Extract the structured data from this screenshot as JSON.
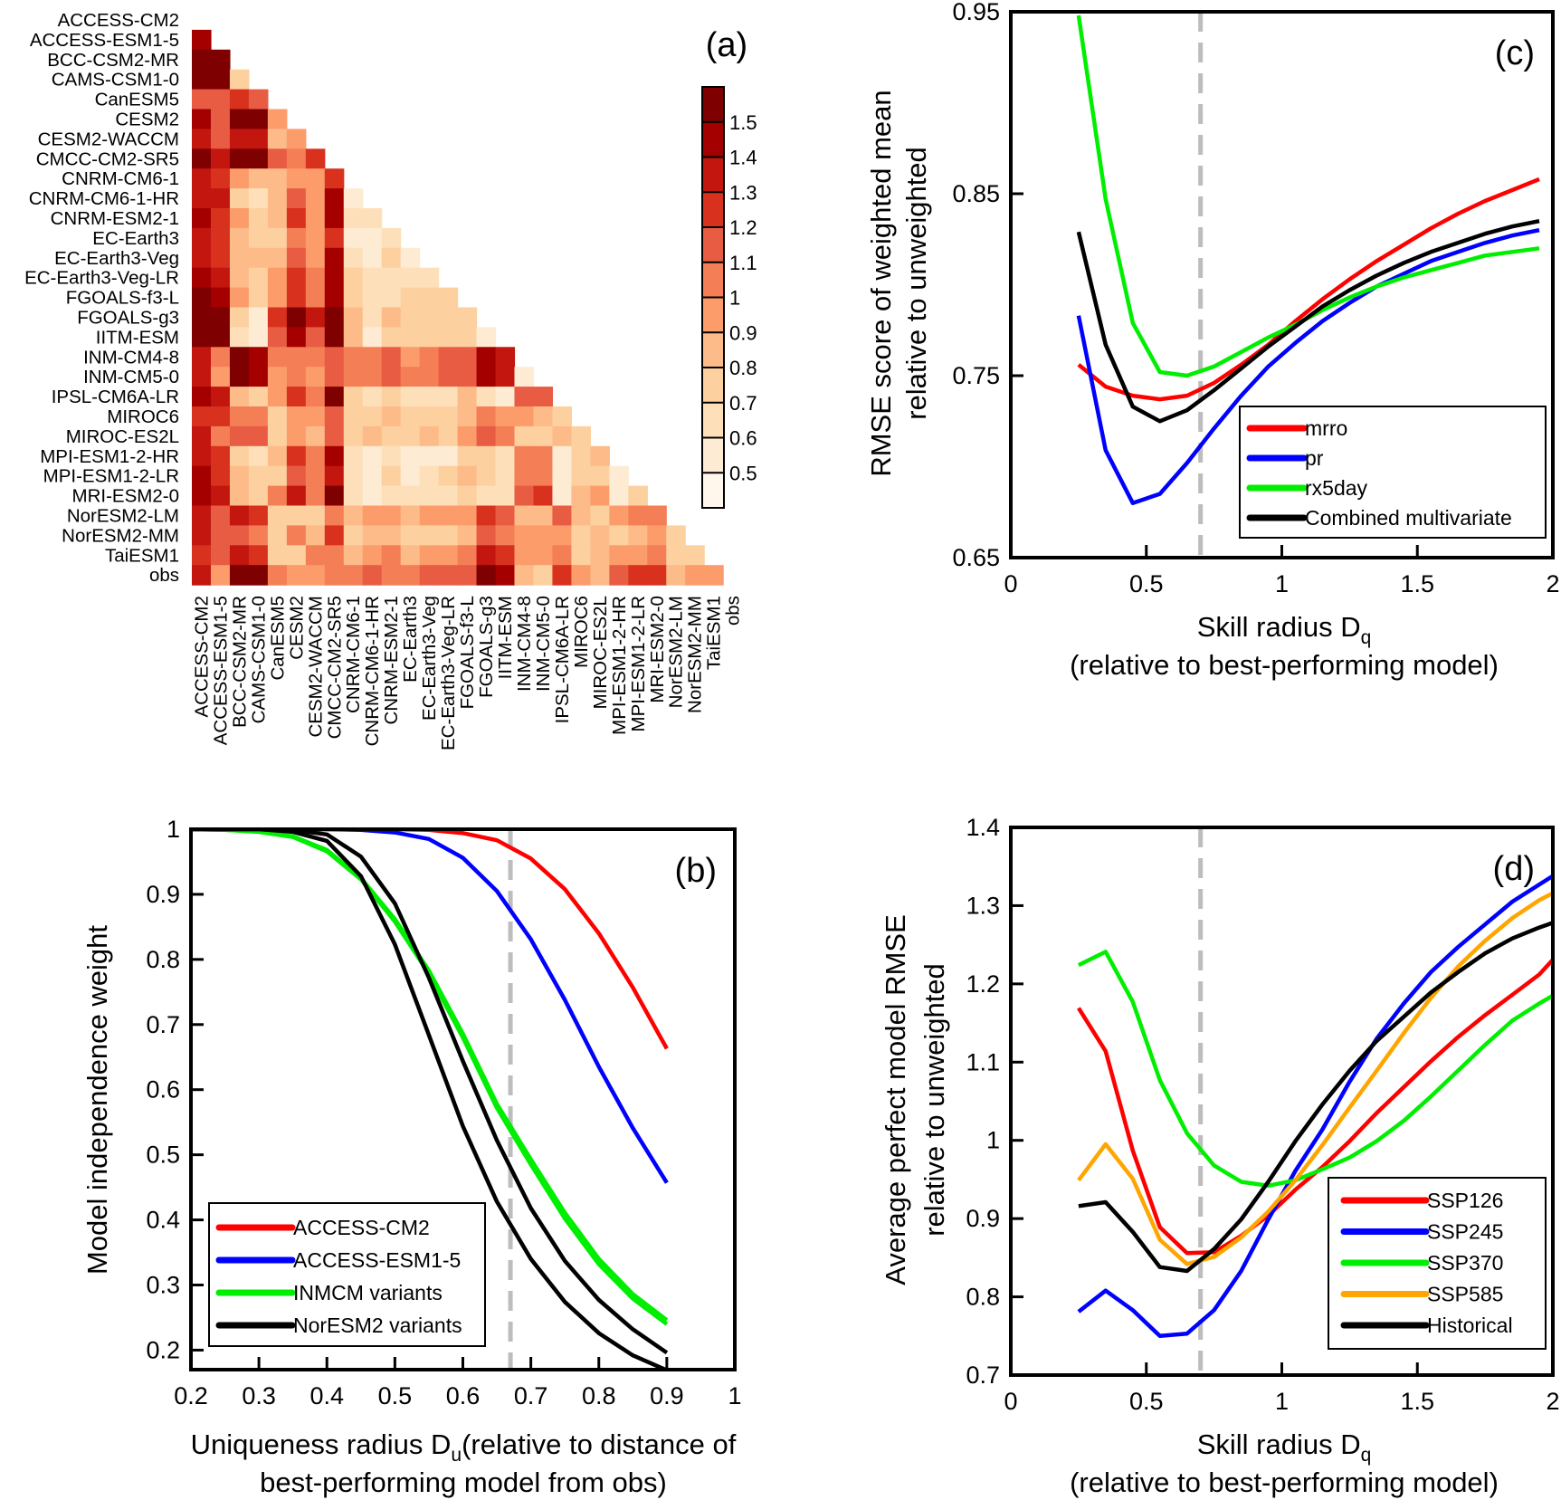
{
  "chart_data": [
    {
      "panel": "(a)",
      "type": "heatmap",
      "row_labels": [
        "ACCESS-CM2",
        "ACCESS-ESM1-5",
        "BCC-CSM2-MR",
        "CAMS-CSM1-0",
        "CanESM5",
        "CESM2",
        "CESM2-WACCM",
        "CMCC-CM2-SR5",
        "CNRM-CM6-1",
        "CNRM-CM6-1-HR",
        "CNRM-ESM2-1",
        "EC-Earth3",
        "EC-Earth3-Veg",
        "EC-Earth3-Veg-LR",
        "FGOALS-f3-L",
        "FGOALS-g3",
        "IITM-ESM",
        "INM-CM4-8",
        "INM-CM5-0",
        "IPSL-CM6A-LR",
        "MIROC6",
        "MIROC-ES2L",
        "MPI-ESM1-2-HR",
        "MPI-ESM1-2-LR",
        "MRI-ESM2-0",
        "NorESM2-LM",
        "NorESM2-MM",
        "TaiESM1",
        "obs"
      ],
      "col_labels": [
        "ACCESS-CM2",
        "ACCESS-ESM1-5",
        "BCC-CSM2-MR",
        "CAMS-CSM1-0",
        "CanESM5",
        "CESM2",
        "CESM2-WACCM",
        "CMCC-CM2-SR5",
        "CNRM-CM6-1",
        "CNRM-CM6-1-HR",
        "CNRM-ESM2-1",
        "EC-Earth3",
        "EC-Earth3-Veg",
        "EC-Earth3-Veg-LR",
        "FGOALS-f3-L",
        "FGOALS-g3",
        "IITM-ESM",
        "INM-CM4-8",
        "INM-CM5-0",
        "IPSL-CM6A-LR",
        "MIROC6",
        "MIROC-ES2L",
        "MPI-ESM1-2-HR",
        "MPI-ESM1-2-LR",
        "MRI-ESM2-0",
        "NorESM2-LM",
        "NorESM2-MM",
        "TaiESM1",
        "obs"
      ],
      "values": [
        [],
        [
          1.45
        ],
        [
          1.55,
          1.55
        ],
        [
          1.55,
          1.55,
          0.75
        ],
        [
          1.15,
          1.15,
          1.25,
          1.15
        ],
        [
          1.45,
          1.15,
          1.55,
          1.55,
          0.95
        ],
        [
          1.35,
          1.15,
          1.35,
          1.35,
          0.85,
          0.95
        ],
        [
          1.55,
          1.35,
          1.55,
          1.55,
          1.15,
          1.05,
          1.25
        ],
        [
          1.35,
          1.25,
          0.95,
          0.85,
          0.85,
          0.95,
          0.95,
          1.25
        ],
        [
          1.35,
          1.35,
          0.75,
          0.65,
          0.85,
          1.15,
          0.95,
          1.45,
          0.55
        ],
        [
          1.45,
          1.25,
          0.95,
          0.75,
          0.85,
          1.25,
          0.95,
          1.45,
          0.65,
          0.65
        ],
        [
          1.35,
          1.25,
          0.85,
          0.75,
          0.75,
          1.05,
          0.95,
          1.25,
          0.55,
          0.55,
          0.65
        ],
        [
          1.35,
          1.25,
          0.85,
          0.85,
          0.85,
          1.15,
          0.95,
          1.45,
          0.65,
          0.55,
          0.75,
          0.55
        ],
        [
          1.45,
          1.35,
          0.85,
          0.75,
          0.95,
          1.25,
          1.05,
          1.45,
          0.75,
          0.65,
          0.65,
          0.65,
          0.65
        ],
        [
          1.55,
          1.45,
          0.95,
          0.75,
          0.95,
          1.25,
          1.05,
          1.45,
          0.75,
          0.65,
          0.65,
          0.75,
          0.75,
          0.75
        ],
        [
          1.55,
          1.55,
          0.75,
          0.55,
          1.25,
          1.55,
          1.35,
          1.55,
          0.85,
          0.65,
          0.85,
          0.75,
          0.75,
          0.75,
          0.75
        ],
        [
          1.55,
          1.55,
          0.65,
          0.55,
          1.15,
          1.45,
          1.15,
          1.55,
          0.85,
          0.55,
          0.75,
          0.75,
          0.75,
          0.75,
          0.75,
          0.55
        ],
        [
          1.35,
          1.05,
          1.55,
          1.45,
          1.05,
          1.05,
          1.05,
          1.15,
          1.05,
          1.05,
          1.15,
          0.95,
          1.05,
          1.15,
          1.15,
          1.45,
          1.35
        ],
        [
          1.35,
          0.95,
          1.55,
          1.45,
          0.95,
          1.05,
          0.95,
          1.15,
          1.05,
          1.05,
          1.15,
          1.05,
          1.05,
          1.15,
          1.15,
          1.45,
          1.35,
          0.55
        ],
        [
          1.45,
          1.35,
          0.85,
          0.75,
          0.95,
          1.25,
          1.05,
          1.55,
          0.75,
          0.65,
          0.75,
          0.65,
          0.65,
          0.65,
          0.85,
          0.65,
          0.55,
          1.15,
          1.15
        ],
        [
          1.25,
          1.25,
          1.05,
          1.05,
          0.75,
          0.95,
          0.95,
          1.15,
          0.75,
          0.75,
          0.85,
          0.75,
          0.75,
          0.75,
          0.85,
          1.05,
          0.95,
          0.95,
          0.85,
          0.75
        ],
        [
          1.35,
          1.05,
          1.15,
          1.15,
          0.75,
          0.95,
          0.85,
          1.15,
          0.75,
          0.85,
          0.75,
          0.75,
          0.85,
          0.75,
          0.95,
          1.15,
          1.05,
          0.75,
          0.75,
          0.85,
          0.75
        ],
        [
          1.35,
          1.25,
          0.75,
          0.65,
          0.85,
          1.25,
          1.05,
          1.45,
          0.65,
          0.55,
          0.65,
          0.55,
          0.55,
          0.55,
          0.75,
          0.75,
          0.65,
          1.05,
          1.05,
          0.55,
          0.75,
          0.85
        ],
        [
          1.45,
          1.25,
          0.85,
          0.75,
          0.75,
          1.15,
          1.05,
          1.35,
          0.65,
          0.55,
          0.75,
          0.55,
          0.65,
          0.75,
          0.85,
          0.75,
          0.65,
          1.05,
          1.05,
          0.55,
          0.75,
          0.75,
          0.55
        ],
        [
          1.45,
          1.35,
          0.85,
          0.75,
          1.05,
          1.35,
          1.05,
          1.55,
          0.65,
          0.55,
          0.65,
          0.65,
          0.65,
          0.65,
          0.75,
          0.65,
          0.65,
          1.15,
          1.25,
          0.55,
          0.85,
          0.95,
          0.55,
          0.75
        ],
        [
          1.35,
          1.15,
          1.35,
          1.25,
          0.75,
          0.75,
          0.75,
          1.05,
          0.85,
          0.95,
          0.95,
          0.85,
          0.95,
          0.95,
          0.95,
          1.25,
          1.15,
          0.85,
          0.85,
          1.15,
          0.85,
          0.75,
          0.95,
          1.05,
          1.05
        ],
        [
          1.35,
          1.15,
          1.15,
          1.05,
          0.75,
          1.05,
          0.85,
          1.25,
          0.75,
          0.85,
          0.85,
          0.75,
          0.75,
          0.75,
          0.85,
          1.15,
          1.05,
          0.95,
          0.95,
          0.95,
          0.75,
          0.85,
          0.75,
          0.85,
          0.95,
          0.75
        ],
        [
          1.25,
          1.15,
          1.35,
          1.25,
          0.75,
          0.75,
          1.05,
          1.05,
          0.85,
          0.95,
          1.05,
          0.85,
          0.95,
          0.95,
          1.05,
          1.35,
          1.25,
          0.95,
          0.95,
          1.05,
          0.75,
          0.85,
          0.95,
          0.95,
          1.05,
          0.75,
          0.75
        ],
        [
          1.35,
          0.95,
          1.55,
          1.55,
          1.05,
          0.95,
          0.95,
          1.05,
          1.05,
          1.15,
          1.05,
          1.05,
          1.15,
          1.15,
          1.15,
          1.55,
          1.45,
          0.85,
          0.75,
          1.25,
          0.95,
          0.85,
          1.15,
          1.25,
          1.25,
          0.85,
          0.95,
          0.95
        ]
      ],
      "colorbar": {
        "ticks": [
          "1.5",
          "1.4",
          "1.3",
          "1.2",
          "1.1",
          "1",
          "0.9",
          "0.8",
          "0.7",
          "0.6",
          "0.5"
        ],
        "bounds": [
          0.4,
          0.5,
          0.6,
          0.7,
          0.8,
          0.9,
          1.0,
          1.1,
          1.2,
          1.3,
          1.4,
          1.5,
          1.6
        ],
        "colors": [
          "#fff7ec",
          "#feebd3",
          "#fde0b9",
          "#fdd09f",
          "#fdbb89",
          "#fc9c6b",
          "#f47e55",
          "#e85c44",
          "#d8321f",
          "#c2160f",
          "#a40000",
          "#7f0000"
        ]
      }
    },
    {
      "panel": "(b)",
      "type": "line",
      "xlabel": {
        "text": "Uniqueness radius D",
        "sub": "u",
        "after": "(relative to distance of",
        "line2": "best-performing model from obs)"
      },
      "ylabel": [
        "Model independence weight"
      ],
      "xlim": [
        0.2,
        1.0
      ],
      "ylim": [
        0.17,
        1.0
      ],
      "xticks": [
        "0.2",
        "0.3",
        "0.4",
        "0.5",
        "0.6",
        "0.7",
        "0.8",
        "0.9",
        "1"
      ],
      "yticks": [
        "0.2",
        "0.3",
        "0.4",
        "0.5",
        "0.6",
        "0.7",
        "0.8",
        "0.9",
        "1"
      ],
      "vline": 0.67,
      "legend_position": "bottom-left",
      "x": [
        0.2,
        0.25,
        0.3,
        0.35,
        0.4,
        0.45,
        0.5,
        0.55,
        0.6,
        0.65,
        0.7,
        0.75,
        0.8,
        0.85,
        0.9
      ],
      "series": [
        {
          "name": "ACCESS-CM2",
          "color": "#ff0000",
          "lines": [
            [
              1,
              1,
              1,
              1,
              1,
              1,
              1,
              0.999,
              0.994,
              0.983,
              0.955,
              0.908,
              0.84,
              0.757,
              0.663
            ]
          ]
        },
        {
          "name": "ACCESS-ESM1-5",
          "color": "#0000ff",
          "lines": [
            [
              1,
              1,
              1,
              1,
              1,
              0.999,
              0.995,
              0.985,
              0.956,
              0.905,
              0.831,
              0.738,
              0.635,
              0.541,
              0.457
            ]
          ]
        },
        {
          "name": "INMCM variants",
          "color": "#00ee00",
          "lines": [
            [
              1,
              0.999,
              0.996,
              0.989,
              0.968,
              0.925,
              0.862,
              0.783,
              0.686,
              0.578,
              0.493,
              0.411,
              0.34,
              0.286,
              0.246
            ],
            [
              1,
              0.999,
              0.996,
              0.988,
              0.966,
              0.923,
              0.858,
              0.778,
              0.68,
              0.572,
              0.485,
              0.402,
              0.332,
              0.279,
              0.24
            ]
          ]
        },
        {
          "name": "NorESM2 variants",
          "color": "#000000",
          "lines": [
            [
              1,
              1,
              1,
              0.999,
              0.992,
              0.958,
              0.886,
              0.772,
              0.644,
              0.522,
              0.418,
              0.337,
              0.277,
              0.232,
              0.196
            ],
            [
              1,
              1,
              1,
              0.996,
              0.982,
              0.928,
              0.823,
              0.684,
              0.544,
              0.428,
              0.34,
              0.274,
              0.226,
              0.192,
              0.169
            ]
          ]
        }
      ]
    },
    {
      "panel": "(c)",
      "type": "line",
      "xlabel": {
        "text": "Skill radius D",
        "sub": "q",
        "after": "",
        "line2": "(relative to best-performing model)"
      },
      "ylabel": [
        "RMSE score of weighted mean",
        "relative to unweighted"
      ],
      "xlim": [
        0,
        2
      ],
      "ylim": [
        0.65,
        0.95
      ],
      "xticks": [
        "0",
        "0.5",
        "1",
        "1.5",
        "2"
      ],
      "yticks": [
        "0.65",
        "0.75",
        "0.85",
        "0.95"
      ],
      "vline": 0.7,
      "legend_position": "bottom-right",
      "x": [
        0.25,
        0.35,
        0.45,
        0.55,
        0.65,
        0.75,
        0.85,
        0.95,
        1.05,
        1.15,
        1.25,
        1.35,
        1.45,
        1.55,
        1.65,
        1.75,
        1.85,
        1.95
      ],
      "series": [
        {
          "name": "mrro",
          "color": "#ff0000",
          "lines": [
            [
              0.756,
              0.744,
              0.739,
              0.737,
              0.739,
              0.746,
              0.756,
              0.767,
              0.78,
              0.792,
              0.803,
              0.813,
              0.822,
              0.831,
              0.839,
              0.846,
              0.852,
              0.858
            ]
          ]
        },
        {
          "name": "pr",
          "color": "#0000ff",
          "lines": [
            [
              0.783,
              0.709,
              0.68,
              0.685,
              0.702,
              0.721,
              0.739,
              0.755,
              0.768,
              0.78,
              0.79,
              0.799,
              0.806,
              0.813,
              0.818,
              0.823,
              0.827,
              0.83
            ]
          ]
        },
        {
          "name": "rx5day",
          "color": "#00ee00",
          "lines": [
            [
              0.948,
              0.847,
              0.779,
              0.752,
              0.75,
              0.755,
              0.763,
              0.771,
              0.778,
              0.786,
              0.793,
              0.799,
              0.804,
              0.808,
              0.812,
              0.816,
              0.818,
              0.82
            ]
          ]
        },
        {
          "name": "Combined multivariate",
          "color": "#000000",
          "lines": [
            [
              0.829,
              0.767,
              0.733,
              0.725,
              0.731,
              0.742,
              0.754,
              0.766,
              0.777,
              0.788,
              0.797,
              0.805,
              0.812,
              0.818,
              0.823,
              0.828,
              0.832,
              0.835
            ]
          ]
        }
      ]
    },
    {
      "panel": "(d)",
      "type": "line",
      "xlabel": {
        "text": "Skill radius D",
        "sub": "q",
        "after": "",
        "line2": "(relative to best-performing model)"
      },
      "ylabel": [
        "Average perfect model RMSE",
        "relative to unweighted"
      ],
      "xlim": [
        0,
        2
      ],
      "ylim": [
        0.7,
        1.4
      ],
      "xticks": [
        "0",
        "0.5",
        "1",
        "1.5",
        "2"
      ],
      "yticks": [
        "0.7",
        "0.8",
        "0.9",
        "1",
        "1.1",
        "1.2",
        "1.3",
        "1.4"
      ],
      "vline": 0.7,
      "legend_position": "bottom-right",
      "x": [
        0.25,
        0.35,
        0.45,
        0.55,
        0.65,
        0.75,
        0.85,
        0.95,
        1.05,
        1.15,
        1.25,
        1.35,
        1.45,
        1.55,
        1.65,
        1.75,
        1.85,
        1.95,
        2.0
      ],
      "series": [
        {
          "name": "SSP126",
          "color": "#ff0000",
          "lines": [
            [
              1.169,
              1.114,
              0.987,
              0.889,
              0.856,
              0.857,
              0.878,
              0.904,
              0.937,
              0.966,
              0.999,
              1.035,
              1.068,
              1.101,
              1.132,
              1.16,
              1.186,
              1.212,
              1.231
            ]
          ]
        },
        {
          "name": "SSP245",
          "color": "#0000ff",
          "lines": [
            [
              0.781,
              0.808,
              0.783,
              0.75,
              0.753,
              0.783,
              0.833,
              0.899,
              0.961,
              1.014,
              1.075,
              1.13,
              1.175,
              1.215,
              1.247,
              1.276,
              1.305,
              1.327,
              1.338
            ]
          ]
        },
        {
          "name": "SSP370",
          "color": "#00ee00",
          "lines": [
            [
              1.224,
              1.241,
              1.177,
              1.077,
              1.009,
              0.968,
              0.947,
              0.942,
              0.949,
              0.963,
              0.978,
              0.999,
              1.025,
              1.056,
              1.089,
              1.122,
              1.153,
              1.175,
              1.185
            ]
          ]
        },
        {
          "name": "SSP585",
          "color": "#ffa500",
          "lines": [
            [
              0.949,
              0.995,
              0.951,
              0.873,
              0.842,
              0.851,
              0.876,
              0.909,
              0.949,
              0.994,
              1.042,
              1.089,
              1.137,
              1.182,
              1.222,
              1.255,
              1.284,
              1.307,
              1.316
            ]
          ]
        },
        {
          "name": "Historical",
          "color": "#000000",
          "lines": [
            [
              0.916,
              0.921,
              0.883,
              0.838,
              0.833,
              0.861,
              0.899,
              0.947,
              0.999,
              1.046,
              1.089,
              1.127,
              1.158,
              1.189,
              1.215,
              1.239,
              1.258,
              1.272,
              1.278
            ]
          ]
        }
      ]
    }
  ]
}
